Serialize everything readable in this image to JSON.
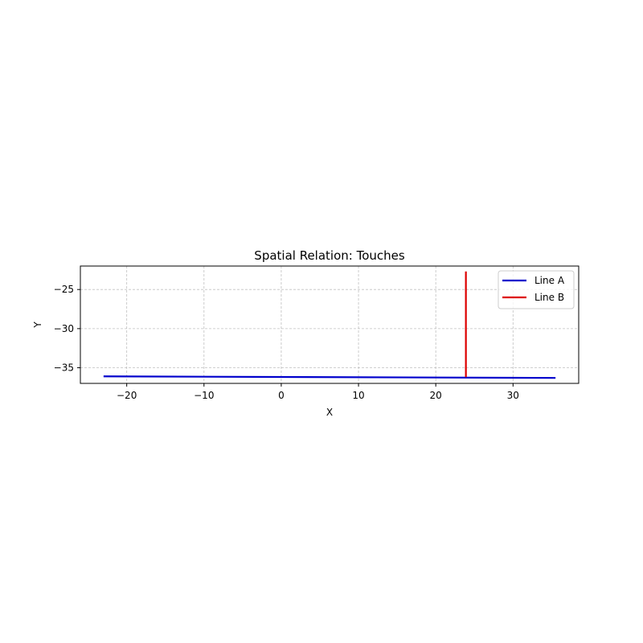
{
  "chart_data": {
    "type": "line",
    "title": "Spatial Relation: Touches",
    "xlabel": "X",
    "ylabel": "Y",
    "xlim": [
      -26,
      38.5
    ],
    "ylim": [
      -37,
      -22
    ],
    "xticks": [
      -20,
      -10,
      0,
      10,
      20,
      30
    ],
    "yticks": [
      -25,
      -30,
      -35
    ],
    "xtick_labels": [
      "−20",
      "−10",
      "0",
      "10",
      "20",
      "30"
    ],
    "ytick_labels": [
      "−25",
      "−30",
      "−35"
    ],
    "grid": true,
    "legend_position": "top-right",
    "series": [
      {
        "name": "Line A",
        "color": "#0000cc",
        "x": [
          -23,
          35.5
        ],
        "y": [
          -36.1,
          -36.3
        ]
      },
      {
        "name": "Line B",
        "color": "#dd0000",
        "x": [
          23.9,
          23.9
        ],
        "y": [
          -36.2,
          -22.7
        ]
      }
    ]
  }
}
